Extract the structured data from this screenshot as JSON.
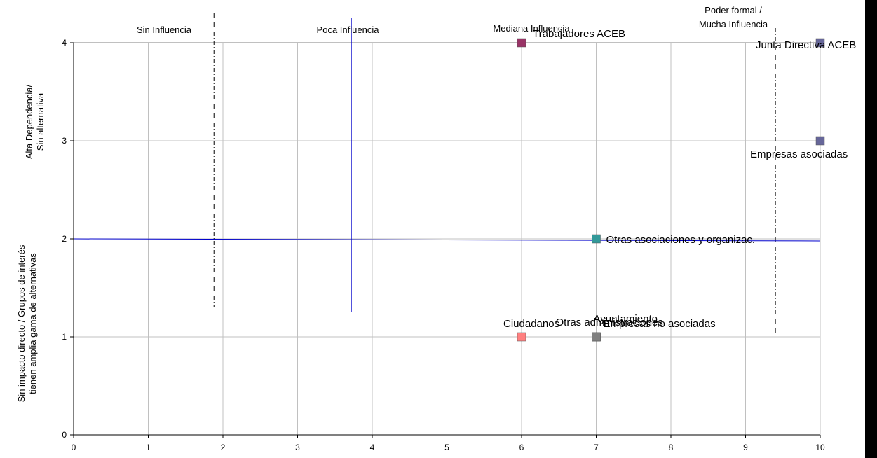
{
  "chart_data": {
    "type": "scatter",
    "title": "",
    "xlim": [
      0,
      10
    ],
    "ylim": [
      0,
      4
    ],
    "x_ticks": [
      "0",
      "1",
      "2",
      "3",
      "4",
      "5",
      "6",
      "7",
      "8",
      "9",
      "10"
    ],
    "y_ticks": [
      "0",
      "1",
      "2",
      "3",
      "4"
    ],
    "grid": true,
    "y_axis_labels": [
      {
        "lines": [
          "Alta Dependencia/",
          "Sin alternativa"
        ]
      },
      {
        "lines": [
          "Sin impacto directo / Grupos de interés",
          "tienen amplia gama de alternativas"
        ]
      }
    ],
    "zones": [
      {
        "lines": [
          "Sin Influencia"
        ]
      },
      {
        "lines": [
          "Poca Influencia"
        ]
      },
      {
        "lines": [
          "Mediana Influencia"
        ]
      },
      {
        "lines": [
          "Poder formal /",
          "Mucha Influencia"
        ]
      }
    ],
    "points": [
      {
        "label": "Trabajadores ACEB",
        "x": 6,
        "y": 4,
        "color": "#993366"
      },
      {
        "label": "Junta Directiva ACEB",
        "x": 10,
        "y": 4,
        "color": "#666699"
      },
      {
        "label": "Empresas asociadas",
        "x": 10,
        "y": 3,
        "color": "#666699"
      },
      {
        "label": "Otras asociaciones y organizac.",
        "x": 7,
        "y": 2,
        "color": "#339999"
      },
      {
        "label": "Ciudadanos",
        "x": 6,
        "y": 1,
        "color": "#FF8080"
      },
      {
        "label": "Otras administraciones",
        "x": 7,
        "y": 1,
        "color": "#999933"
      },
      {
        "label": "Ayuntamiento",
        "x": 7,
        "y": 1,
        "color": "#808080"
      },
      {
        "label": "Empresas no asociadas",
        "x": 7,
        "y": 1,
        "color": "#808080"
      }
    ],
    "dividers": [
      {
        "orientation": "vertical",
        "x": 1.88,
        "y_from": 1.3,
        "y_to": 4.3,
        "style": "dash-dot",
        "color": "#000000"
      },
      {
        "orientation": "vertical",
        "x": 3.72,
        "y_from": 1.25,
        "y_to": 4.25,
        "style": "solid",
        "color": "#0000CC"
      },
      {
        "orientation": "vertical",
        "x": 9.4,
        "y_from": 1.0,
        "y_to": 4.15,
        "style": "dash-dot",
        "color": "#000000"
      },
      {
        "orientation": "horizontal",
        "y": 2.0,
        "x_from": 0,
        "x_to": 10,
        "style": "solid",
        "color": "#0000CC"
      }
    ]
  }
}
